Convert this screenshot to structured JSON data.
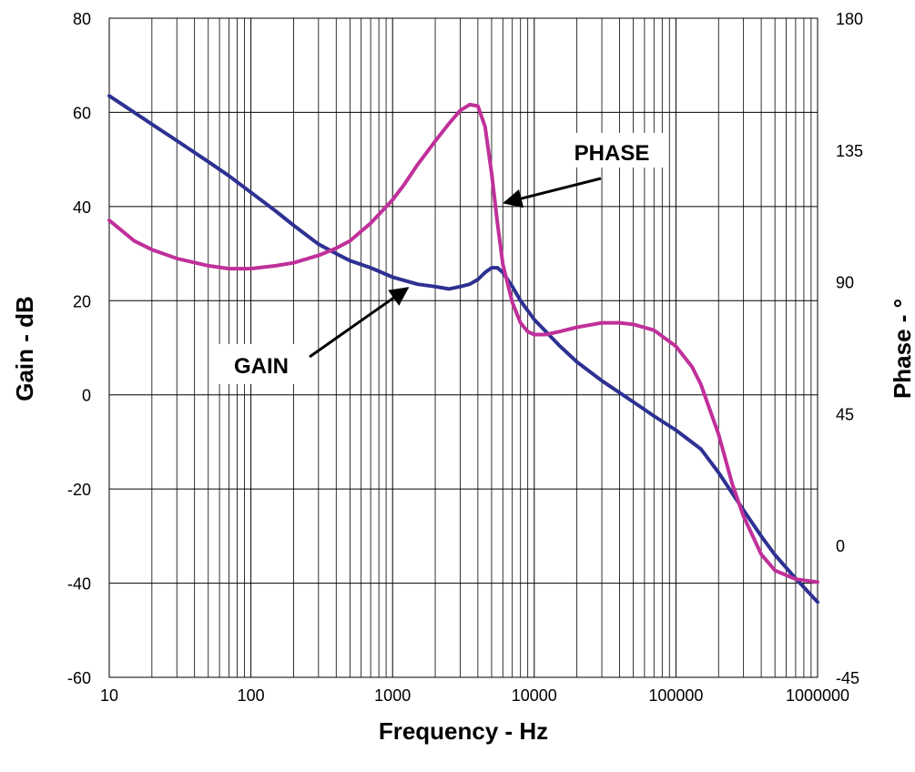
{
  "chart_data": {
    "type": "line",
    "title": "",
    "xlabel": "Frequency - Hz",
    "ylabel": "Gain - dB",
    "y2label": "Phase - °",
    "xscale": "log",
    "xlim": [
      10,
      1000000
    ],
    "ylim": [
      -60,
      80
    ],
    "y2lim": [
      -45,
      180
    ],
    "grid": true,
    "legend": "none",
    "x_ticks": [
      "10",
      "100",
      "1000",
      "10000",
      "100000",
      "1000000"
    ],
    "y_ticks": [
      "80",
      "60",
      "40",
      "20",
      "0",
      "-20",
      "-40",
      "-60"
    ],
    "y2_ticks": [
      "180",
      "135",
      "90",
      "45",
      "0",
      "-45"
    ],
    "colors": {
      "gain": "#2e3192",
      "phase": "#c0309a"
    },
    "series": [
      {
        "axis": "left",
        "x": [
          10,
          20,
          30,
          50,
          70,
          100,
          150,
          200,
          300,
          400,
          500,
          700,
          1000,
          1500,
          2000,
          2500,
          3000,
          3500,
          4000,
          4500,
          5000,
          5500,
          6000,
          7000,
          8000,
          10000,
          15000,
          20000,
          30000,
          50000,
          70000,
          100000,
          150000,
          200000,
          300000,
          400000,
          500000,
          700000,
          1000000
        ],
        "values": [
          63.5,
          57.5,
          54,
          49.5,
          46.5,
          43,
          39,
          36,
          32,
          30,
          28.5,
          27,
          25,
          23.5,
          23,
          22.5,
          23,
          23.5,
          24.5,
          26,
          27,
          27,
          26,
          23,
          20,
          16,
          10.5,
          7,
          3,
          -1.5,
          -4.5,
          -7.5,
          -11.5,
          -16.5,
          -24.5,
          -30,
          -34,
          -39,
          -44
        ]
      },
      {
        "axis": "right",
        "x": [
          10,
          15,
          20,
          30,
          50,
          70,
          100,
          150,
          200,
          300,
          400,
          500,
          700,
          1000,
          1200,
          1500,
          2000,
          2500,
          3000,
          3500,
          4000,
          4500,
          5000,
          5500,
          6000,
          7000,
          8000,
          9000,
          10000,
          12000,
          15000,
          20000,
          30000,
          40000,
          50000,
          70000,
          100000,
          130000,
          150000,
          200000,
          250000,
          300000,
          400000,
          500000,
          700000,
          1000000
        ],
        "values": [
          111,
          104,
          101,
          98,
          95.5,
          94.5,
          94.5,
          95.5,
          96.5,
          99,
          101.5,
          104,
          110,
          118,
          123,
          130,
          138,
          144,
          148.5,
          150.5,
          150,
          143,
          127,
          110,
          96,
          83,
          76,
          73,
          72,
          72,
          73,
          74.5,
          76,
          76,
          75.5,
          73.5,
          68,
          61,
          55,
          38,
          21,
          10,
          -3,
          -8.5,
          -11.5,
          -12.5
        ]
      }
    ],
    "annotations": [
      {
        "label": "PHASE",
        "x": 6000,
        "y2": 117,
        "axis": "right"
      },
      {
        "label": "GAIN",
        "x": 1100,
        "y": 25,
        "axis": "left"
      }
    ]
  }
}
